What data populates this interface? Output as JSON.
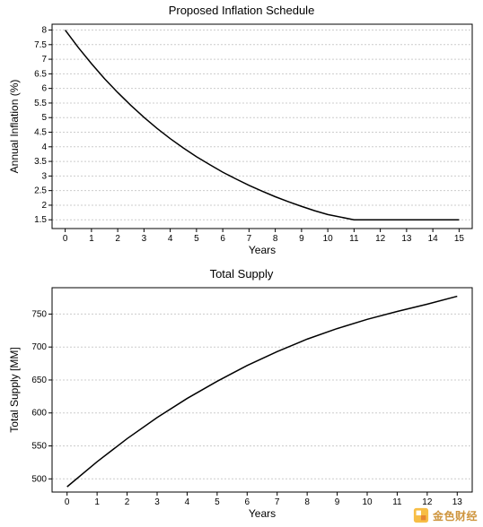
{
  "chart1": {
    "type": "line",
    "title": "Proposed Inflation Schedule",
    "xlabel": "Years",
    "ylabel": "Annual Inflation (%)",
    "xlim": [
      -0.5,
      15.5
    ],
    "ylim": [
      1.2,
      8.2
    ],
    "xticks": [
      0,
      1,
      2,
      3,
      4,
      5,
      6,
      7,
      8,
      9,
      10,
      11,
      12,
      13,
      14,
      15
    ],
    "yticks": [
      1.5,
      2.0,
      2.5,
      3.0,
      3.5,
      4.0,
      4.5,
      5.0,
      5.5,
      6.0,
      6.5,
      7.0,
      7.5,
      8.0
    ],
    "grid_color": "#cccccc",
    "background_color": "#ffffff",
    "line_color": "#000000",
    "line_width": 1.5,
    "title_fontsize": 13,
    "label_fontsize": 12,
    "tick_fontsize": 10,
    "data": {
      "x": [
        0,
        0.5,
        1,
        1.5,
        2,
        2.5,
        3,
        3.5,
        4,
        4.5,
        5,
        5.5,
        6,
        6.5,
        7,
        7.5,
        8,
        8.5,
        9,
        9.5,
        10,
        11,
        12,
        13,
        14,
        15
      ],
      "y": [
        8.0,
        7.4,
        6.85,
        6.33,
        5.86,
        5.42,
        5.01,
        4.63,
        4.28,
        3.96,
        3.66,
        3.39,
        3.13,
        2.9,
        2.68,
        2.48,
        2.29,
        2.12,
        1.96,
        1.81,
        1.68,
        1.5,
        1.5,
        1.5,
        1.5,
        1.5
      ]
    }
  },
  "chart2": {
    "type": "line",
    "title": "Total Supply",
    "xlabel": "Years",
    "ylabel": "Total Supply [MM]",
    "xlim": [
      -0.5,
      13.5
    ],
    "ylim": [
      480,
      790
    ],
    "xticks": [
      0,
      1,
      2,
      3,
      4,
      5,
      6,
      7,
      8,
      9,
      10,
      11,
      12,
      13
    ],
    "yticks": [
      500,
      550,
      600,
      650,
      700,
      750
    ],
    "grid_color": "#cccccc",
    "background_color": "#ffffff",
    "line_color": "#000000",
    "line_width": 1.5,
    "title_fontsize": 13,
    "label_fontsize": 12,
    "tick_fontsize": 10,
    "data": {
      "x": [
        0,
        1,
        2,
        3,
        4,
        5,
        6,
        7,
        8,
        9,
        10,
        11,
        12,
        13
      ],
      "y": [
        488,
        526,
        561,
        593,
        622,
        648,
        672,
        693,
        712,
        728,
        742,
        754,
        765,
        777
      ]
    }
  },
  "watermark": {
    "text": "金色财经",
    "icon_colors": {
      "main": "#f5a623",
      "accent": "#e57b1e"
    }
  }
}
